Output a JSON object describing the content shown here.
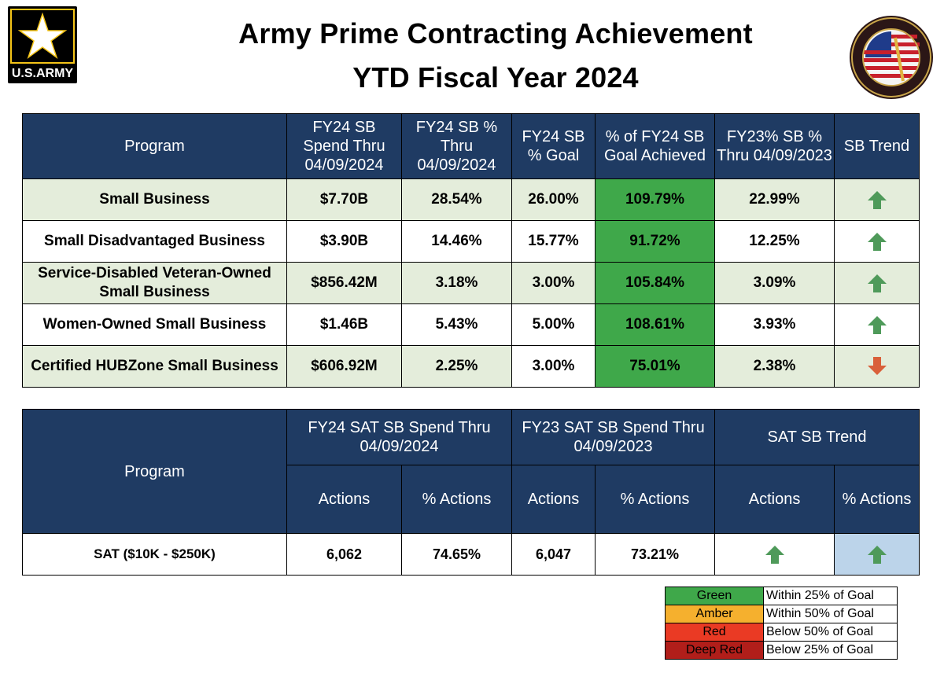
{
  "header": {
    "title_line1": "Army Prime Contracting Achievement",
    "title_line2": "YTD Fiscal Year 2024",
    "army_logo_text": "U.S.ARMY"
  },
  "colors": {
    "header_blue": "#1f3b63",
    "achieved_green": "#3fa84a",
    "row_light_green": "#e4eddb",
    "up_arrow_green": "#4f9a5a",
    "down_arrow_orange": "#d9603a",
    "highlight_blue": "#bcd4ea"
  },
  "table1": {
    "headers": [
      "Program",
      "FY24 SB Spend Thru 04/09/2024",
      "FY24 SB % Thru 04/09/2024",
      "FY24 SB % Goal",
      "% of FY24 SB Goal Achieved",
      "FY23% SB % Thru 04/09/2023",
      "SB Trend"
    ],
    "rows": [
      {
        "program": "Small Business",
        "spend": "$7.70B",
        "pct": "28.54%",
        "goal": "26.00%",
        "achieved": "109.79%",
        "fy23": "22.99%",
        "trend": "up"
      },
      {
        "program": "Small Disadvantaged Business",
        "spend": "$3.90B",
        "pct": "14.46%",
        "goal": "15.77%",
        "achieved": "91.72%",
        "fy23": "12.25%",
        "trend": "up"
      },
      {
        "program": "Service-Disabled Veteran-Owned Small Business",
        "spend": "$856.42M",
        "pct": "3.18%",
        "goal": "3.00%",
        "achieved": "105.84%",
        "fy23": "3.09%",
        "trend": "up"
      },
      {
        "program": "Women-Owned Small Business",
        "spend": "$1.46B",
        "pct": "5.43%",
        "goal": "5.00%",
        "achieved": "108.61%",
        "fy23": "3.93%",
        "trend": "up"
      },
      {
        "program": "Certified HUBZone Small Business",
        "spend": "$606.92M",
        "pct": "2.25%",
        "goal": "3.00%",
        "achieved": "75.01%",
        "fy23": "2.38%",
        "trend": "down"
      }
    ]
  },
  "table2": {
    "program_header": "Program",
    "group_headers": [
      "FY24 SAT SB Spend Thru 04/09/2024",
      "FY23 SAT SB Spend Thru 04/09/2023",
      "SAT SB Trend"
    ],
    "sub_headers": [
      "Actions",
      "% Actions",
      "Actions",
      "% Actions",
      "Actions",
      "% Actions"
    ],
    "row": {
      "label": "SAT ($10K - $250K)",
      "fy24_actions": "6,062",
      "fy24_pct": "74.65%",
      "fy23_actions": "6,047",
      "fy23_pct": "73.21%",
      "trend_actions": "up",
      "trend_pct": "up"
    }
  },
  "legend": [
    {
      "name": "Green",
      "desc": "Within 25% of Goal",
      "color": "#3fa84a"
    },
    {
      "name": "Amber",
      "desc": "Within 50% of Goal",
      "color": "#f5b02e"
    },
    {
      "name": "Red",
      "desc": "Below 50% of Goal",
      "color": "#ea3a24"
    },
    {
      "name": "Deep Red",
      "desc": "Below 25% of Goal",
      "color": "#b11e1a"
    }
  ]
}
